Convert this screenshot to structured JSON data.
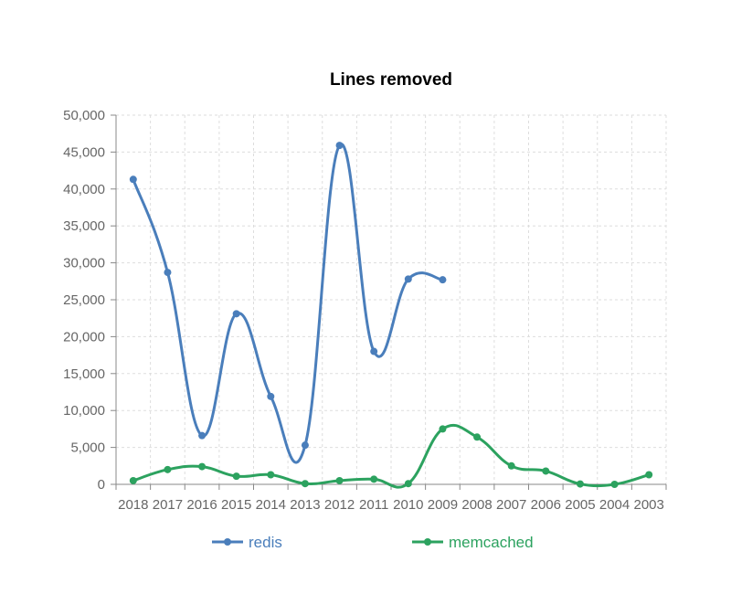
{
  "chart_data": {
    "type": "line",
    "title": "Lines removed",
    "xlabel": "",
    "ylabel": "",
    "categories": [
      "2018",
      "2017",
      "2016",
      "2015",
      "2014",
      "2013",
      "2012",
      "2011",
      "2010",
      "2009",
      "2008",
      "2007",
      "2006",
      "2005",
      "2004",
      "2003"
    ],
    "ylim": [
      0,
      50000
    ],
    "yticks": [
      "0",
      "5,000",
      "10,000",
      "15,000",
      "20,000",
      "25,000",
      "30,000",
      "35,000",
      "40,000",
      "45,000",
      "50,000"
    ],
    "grid": true,
    "legend_position": "bottom",
    "series": [
      {
        "name": "redis",
        "color": "#4a7ebb",
        "values": [
          41300,
          28700,
          6600,
          23100,
          11900,
          5300,
          45900,
          18000,
          27800,
          27700,
          null,
          null,
          null,
          null,
          null,
          null
        ]
      },
      {
        "name": "memcached",
        "color": "#2ca25f",
        "values": [
          500,
          2000,
          2400,
          1100,
          1300,
          100,
          500,
          700,
          100,
          7500,
          6400,
          2500,
          1800,
          50,
          0,
          1300
        ]
      }
    ]
  }
}
